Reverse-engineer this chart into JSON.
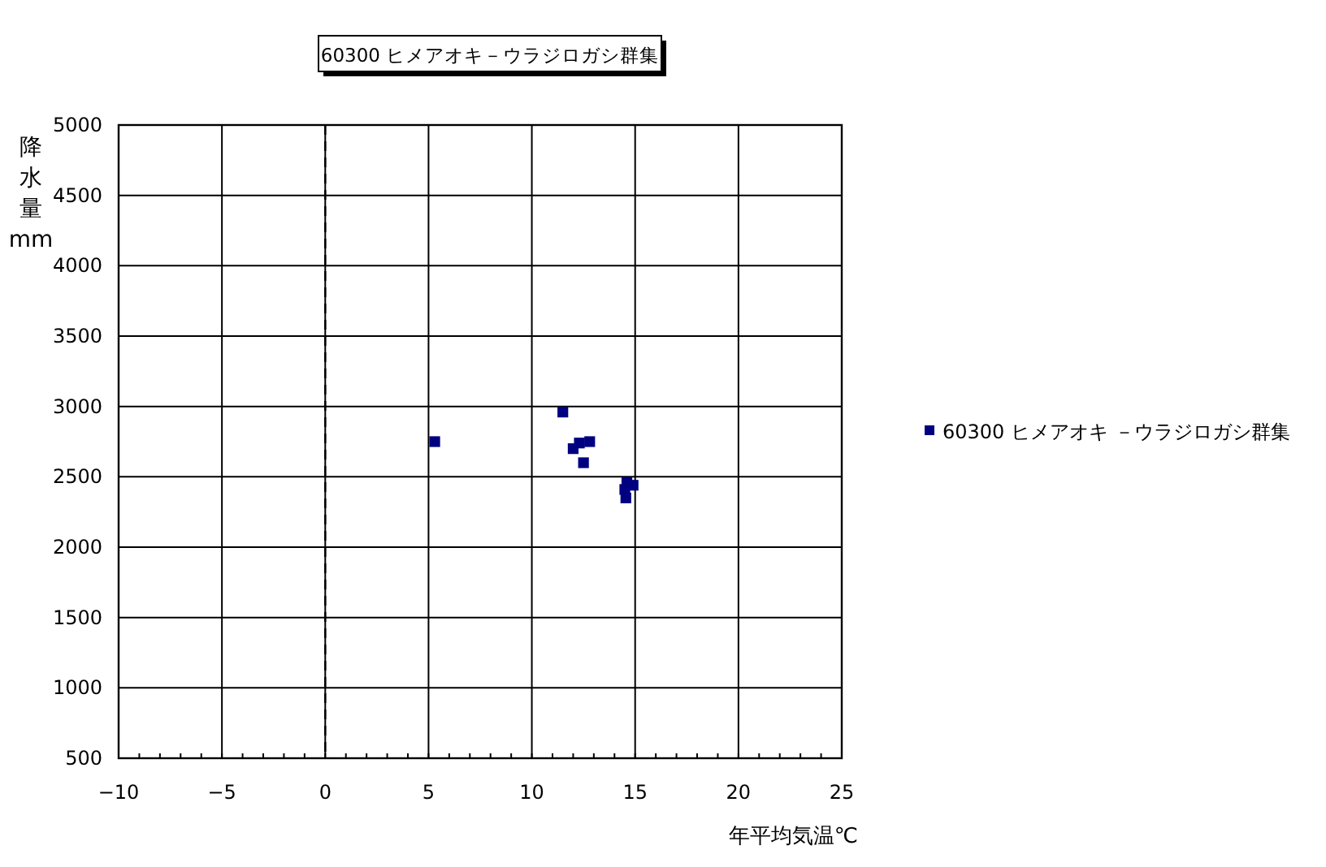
{
  "chart_data": {
    "type": "scatter",
    "title": "60300 ヒメアオキ－ウラジロガシ群集",
    "xlabel": "年平均気温℃",
    "ylabel": "降水量 mm",
    "xlim": [
      -10,
      25
    ],
    "xticks": [
      -10,
      -5,
      0,
      5,
      10,
      15,
      20,
      25
    ],
    "ylim": [
      500,
      5000
    ],
    "yticks": [
      500,
      1000,
      1500,
      2000,
      2500,
      3000,
      3500,
      4000,
      4500,
      5000
    ],
    "grid": true,
    "legend": "right",
    "marker": "square",
    "ref_lines": [
      {
        "axis": "x",
        "value": 0,
        "line_style": "dashed",
        "color": "#000000"
      }
    ],
    "series": [
      {
        "name": "60300 ヒメアオキ －ウラジロガシ群集",
        "color": "#000080",
        "x": [
          5.3,
          11.5,
          12.0,
          12.3,
          12.8,
          12.5,
          14.6,
          14.9,
          14.5,
          14.55
        ],
        "values": [
          2750,
          2960,
          2700,
          2740,
          2750,
          2600,
          2460,
          2440,
          2410,
          2350
        ]
      }
    ]
  }
}
